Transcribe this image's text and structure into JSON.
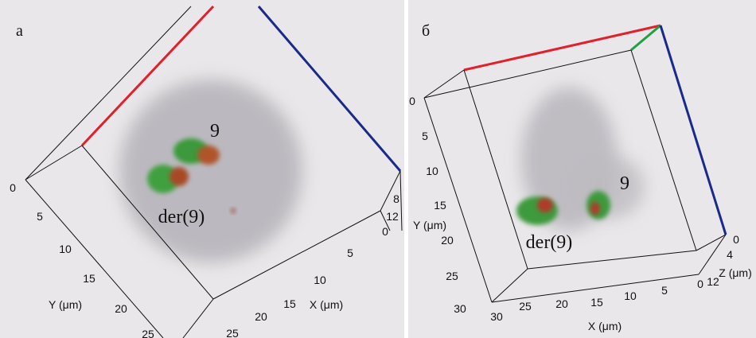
{
  "panels": [
    {
      "label": "а",
      "annotations": [
        "9",
        "der(9)"
      ],
      "y_axis": {
        "title": "Y (μm)",
        "ticks": [
          0,
          5,
          10,
          15,
          20,
          25
        ]
      },
      "x_axis": {
        "title": "X (μm)",
        "ticks": [
          5,
          10,
          15,
          20,
          25
        ]
      },
      "z_axis": {
        "ticks": [
          8,
          12,
          0
        ]
      }
    },
    {
      "label": "б",
      "annotations": [
        "9",
        "der(9)"
      ],
      "y_axis": {
        "title": "Y (μm)",
        "ticks": [
          0,
          5,
          10,
          15,
          20,
          25,
          30
        ]
      },
      "x_axis": {
        "title": "X (μm)",
        "ticks": [
          30,
          25,
          20,
          15,
          10,
          5,
          0
        ]
      },
      "z_axis": {
        "title": "Z (μm)",
        "ticks": [
          0,
          4,
          12
        ]
      }
    }
  ]
}
